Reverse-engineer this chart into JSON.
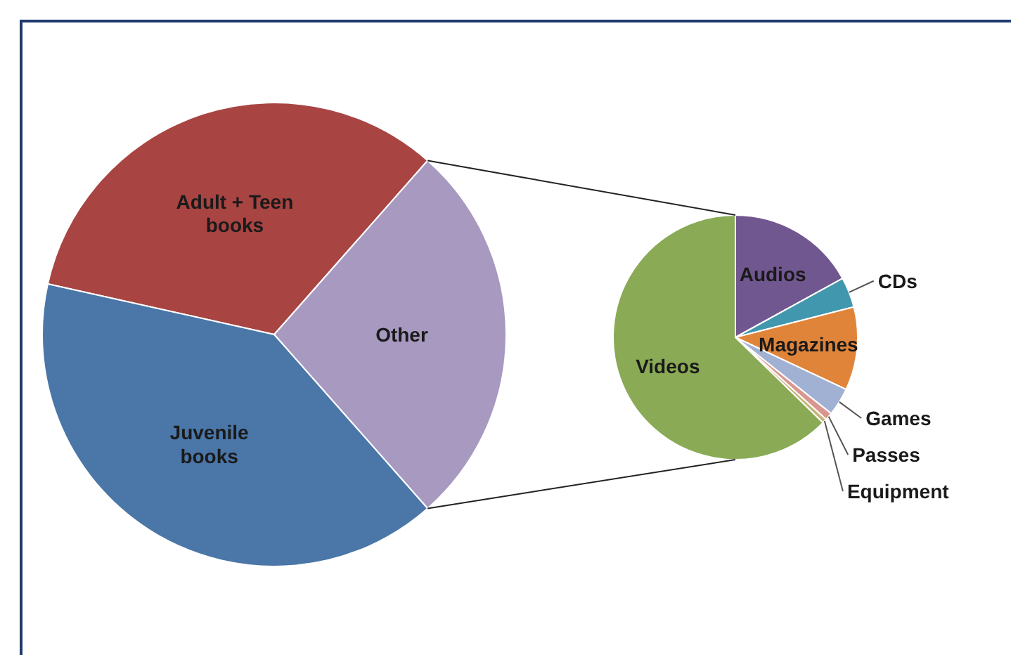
{
  "chart_data": [
    {
      "type": "pie",
      "categories": [
        "Adult + Teen books",
        "Other",
        "Juvenile books"
      ],
      "values": [
        33,
        27,
        40
      ],
      "colors": [
        "#a84442",
        "#a799c0",
        "#4a76a8"
      ]
    },
    {
      "type": "pie",
      "categories": [
        "Audios",
        "CDs",
        "Magazines",
        "Games",
        "Passes",
        "Equipment",
        "Videos"
      ],
      "values": [
        17,
        4,
        11,
        3.7,
        1,
        0.6,
        62.7
      ],
      "colors": [
        "#71578f",
        "#4197ad",
        "#e0843a",
        "#a1b1d4",
        "#d9968f",
        "#c9b57a",
        "#8aaa55"
      ]
    }
  ]
}
